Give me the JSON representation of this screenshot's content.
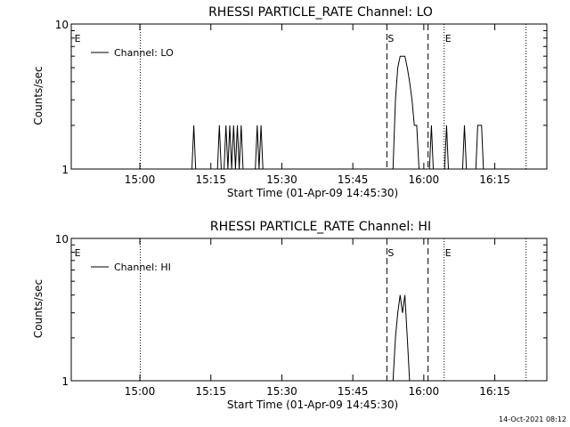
{
  "timestamp": "14-Oct-2021 08:12",
  "chart_data": [
    {
      "type": "line",
      "title": "RHESSI PARTICLE_RATE Channel: LO",
      "xlabel": "Start Time (01-Apr-09 14:45:30)",
      "ylabel": "Counts/sec",
      "x_unit": "minutes after 14:45:30",
      "xlim": [
        0,
        100.5
      ],
      "ylim": [
        1,
        10
      ],
      "yscale": "log",
      "xticks": [
        {
          "label": "15:00",
          "value": 14.5
        },
        {
          "label": "15:15",
          "value": 29.5
        },
        {
          "label": "15:30",
          "value": 44.5
        },
        {
          "label": "15:45",
          "value": 59.5
        },
        {
          "label": "16:00",
          "value": 74.5
        },
        {
          "label": "16:15",
          "value": 89.5
        }
      ],
      "yticks": [
        {
          "label": "1",
          "value": 1
        },
        {
          "label": "10",
          "value": 10
        }
      ],
      "legend": {
        "label": "Channel: LO",
        "position": "top-left"
      },
      "event_markers": [
        {
          "label": "E",
          "x": 0.5,
          "style": "none"
        },
        {
          "label": "",
          "x": 14.6,
          "style": "dotted"
        },
        {
          "label": "S",
          "x": 66.7,
          "style": "dashed"
        },
        {
          "label": "",
          "x": 75.4,
          "style": "dashed"
        },
        {
          "label": "E",
          "x": 78.8,
          "style": "dotted"
        },
        {
          "label": "",
          "x": 96.1,
          "style": "dotted"
        }
      ],
      "series": [
        {
          "x": [
            0,
            25.5,
            25.9,
            26.3,
            30.9,
            31.3,
            31.7,
            32.3,
            32.7,
            33.1,
            33.5,
            33.9,
            34.3,
            34.7,
            35.1,
            35.5,
            35.9,
            36.3,
            38.9,
            39.3,
            39.7,
            40.1,
            40.5,
            68.0,
            68.5,
            69.0,
            69.5,
            70.0,
            70.5,
            71.0,
            71.5,
            72.0,
            72.5,
            73.0,
            73.5,
            75.7,
            76.1,
            76.5,
            78.9,
            79.3,
            79.7,
            82.7,
            83.1,
            83.5,
            85.5,
            85.9,
            86.3,
            86.7,
            87.1,
            100.5
          ],
          "y": [
            1,
            1,
            2,
            1,
            1,
            2,
            1,
            1,
            2,
            1,
            2,
            1,
            2,
            1,
            2,
            1,
            2,
            1,
            1,
            2,
            1,
            2,
            1,
            1,
            3,
            5,
            6,
            6,
            6,
            5,
            4,
            3,
            2,
            2,
            1,
            1,
            2,
            1,
            1,
            2,
            1,
            1,
            2,
            1,
            1,
            2,
            2,
            2,
            1,
            1
          ]
        }
      ]
    },
    {
      "type": "line",
      "title": "RHESSI PARTICLE_RATE Channel: HI",
      "xlabel": "Start Time (01-Apr-09 14:45:30)",
      "ylabel": "Counts/sec",
      "x_unit": "minutes after 14:45:30",
      "xlim": [
        0,
        100.5
      ],
      "ylim": [
        1,
        10
      ],
      "yscale": "log",
      "xticks": [
        {
          "label": "15:00",
          "value": 14.5
        },
        {
          "label": "15:15",
          "value": 29.5
        },
        {
          "label": "15:30",
          "value": 44.5
        },
        {
          "label": "15:45",
          "value": 59.5
        },
        {
          "label": "16:00",
          "value": 74.5
        },
        {
          "label": "16:15",
          "value": 89.5
        }
      ],
      "yticks": [
        {
          "label": "1",
          "value": 1
        },
        {
          "label": "10",
          "value": 10
        }
      ],
      "legend": {
        "label": "Channel: HI",
        "position": "top-left"
      },
      "event_markers": [
        {
          "label": "E",
          "x": 0.5,
          "style": "none"
        },
        {
          "label": "",
          "x": 14.6,
          "style": "dotted"
        },
        {
          "label": "S",
          "x": 66.7,
          "style": "dashed"
        },
        {
          "label": "",
          "x": 75.4,
          "style": "dashed"
        },
        {
          "label": "E",
          "x": 78.8,
          "style": "dotted"
        },
        {
          "label": "",
          "x": 96.1,
          "style": "dotted"
        }
      ],
      "series": [
        {
          "x": [
            0,
            68.0,
            68.5,
            69.0,
            69.5,
            70.0,
            70.5,
            71.0,
            71.5,
            100.5
          ],
          "y": [
            1,
            1,
            2,
            3,
            4,
            3,
            4,
            2,
            1,
            1
          ]
        }
      ]
    }
  ]
}
